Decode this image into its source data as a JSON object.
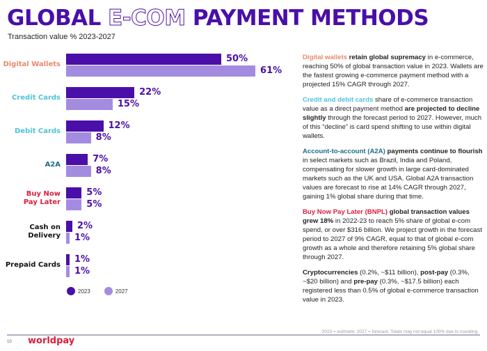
{
  "header": {
    "title_part1": "GLOBAL ",
    "title_outline": "E-COM",
    "title_part2": " PAYMENT METHODS",
    "subtitle": "Transaction value % 2023-2027"
  },
  "colors": {
    "brand_purple": "#4a0fa8",
    "light_purple": "#a38ce0",
    "digital_wallets": "#e8896a",
    "cards": "#4ec3d9",
    "a2a": "#1f6b8a",
    "bnpl": "#d91e3c",
    "other": "#111111",
    "worldpay_red": "#d91e3c"
  },
  "chart_data": {
    "type": "bar",
    "orientation": "horizontal",
    "title": "GLOBAL E-COM PAYMENT METHODS",
    "subtitle": "Transaction value % 2023-2027",
    "categories": [
      "Digital Wallets",
      "Credit Cards",
      "Debit Cards",
      "A2A",
      "Buy Now Pay Later",
      "Cash on Delivery",
      "Prepaid Cards"
    ],
    "series": [
      {
        "name": "2023",
        "color": "#4a0fa8",
        "values": [
          50,
          22,
          12,
          7,
          5,
          2,
          1
        ]
      },
      {
        "name": "2027",
        "color": "#a38ce0",
        "values": [
          61,
          15,
          8,
          8,
          5,
          1,
          1
        ]
      }
    ],
    "value_format": "percent",
    "xlabel": "",
    "ylabel": "",
    "grid": false,
    "legend_position": "bottom-left"
  },
  "chart": {
    "groups": [
      {
        "label_line1": "Digital Wallets",
        "label_line2": "",
        "color": "#e8896a",
        "v2023": "50%",
        "v2027": "61%",
        "n2023": 50,
        "n2027": 61
      },
      {
        "label_line1": "Credit Cards",
        "label_line2": "",
        "color": "#4ec3d9",
        "v2023": "22%",
        "v2027": "15%",
        "n2023": 22,
        "n2027": 15
      },
      {
        "label_line1": "Debit Cards",
        "label_line2": "",
        "color": "#4ec3d9",
        "v2023": "12%",
        "v2027": "8%",
        "n2023": 12,
        "n2027": 8
      },
      {
        "label_line1": "A2A",
        "label_line2": "",
        "color": "#1f6b8a",
        "v2023": "7%",
        "v2027": "8%",
        "n2023": 7,
        "n2027": 8
      },
      {
        "label_line1": "Buy Now",
        "label_line2": "Pay Later",
        "color": "#d91e3c",
        "v2023": "5%",
        "v2027": "5%",
        "n2023": 5,
        "n2027": 5
      },
      {
        "label_line1": "Cash on",
        "label_line2": "Delivery",
        "color": "#111111",
        "v2023": "2%",
        "v2027": "1%",
        "n2023": 2,
        "n2027": 1
      },
      {
        "label_line1": "Prepaid Cards",
        "label_line2": "",
        "color": "#111111",
        "v2023": "1%",
        "v2027": "1%",
        "n2023": 1,
        "n2027": 1
      }
    ],
    "legend": [
      {
        "label": "2023",
        "color": "#4a0fa8"
      },
      {
        "label": "2027",
        "color": "#a38ce0"
      }
    ]
  },
  "text": {
    "p1": {
      "hl": "Digital wallets",
      "bold": " retain global supremacy",
      "rest": " in e-commerce, reaching 50% of global transaction value in 2023. Wallets are the fastest growing e-commerce payment method with a projected 15% CAGR through 2027."
    },
    "p2": {
      "hl": "Credit and debit cards",
      "rest1": " share of e-commerce transaction value as a direct payment method ",
      "bold": "are projected to decline slightly",
      "rest2": " through the forecast period to 2027. However, much of this “decline” is card spend shifting to use within digital wallets."
    },
    "p3": {
      "hl": "Account-to-account (A2A)",
      "bold": " payments continue to flourish",
      "rest": " in select markets such as Brazil, India and Poland, compensating for slower growth in large card-dominated markets such as the UK and USA. Global A2A transaction values are forecast to rise at 14% CAGR through 2027, gaining 1% global share during that time."
    },
    "p4": {
      "hl": "Buy Now Pay Later (BNPL)",
      "bold": " global transaction values grew 18%",
      "rest": " in 2022-23 to reach 5% share of global e-com spend, or over $316 billion. We project growth in the forecast period to 2027 of 9% CAGR, equal to that of global e-com growth as a whole and therefore retaining 5% global share through 2027."
    },
    "p5": {
      "b1": "Cryptocurrencies",
      "t1": " (0.2%, ~$11 billion), ",
      "b2": "post-pay",
      "t2": " (0.3%, ~$20 billion) and ",
      "b3": "pre-pay",
      "t3": " (0.3%, ~$17.5 billion) each registered less than 0.5% of global e-commerce transaction value in 2023."
    }
  },
  "footer": {
    "page_number": "10",
    "logo": "worldpay",
    "footnote": "2023 = estimate; 2027 = forecast. Totals may not equal 100% due to rounding."
  }
}
